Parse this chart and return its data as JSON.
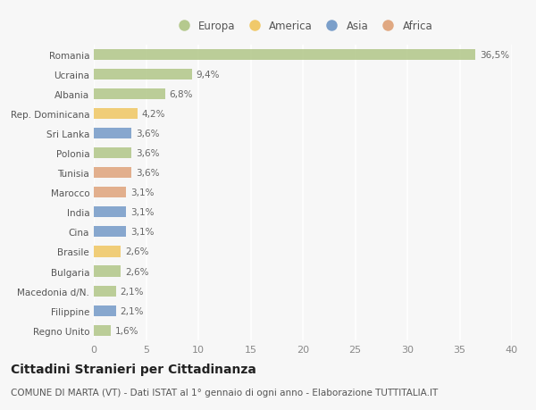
{
  "countries": [
    "Romania",
    "Ucraina",
    "Albania",
    "Rep. Dominicana",
    "Sri Lanka",
    "Polonia",
    "Tunisia",
    "Marocco",
    "India",
    "Cina",
    "Brasile",
    "Bulgaria",
    "Macedonia d/N.",
    "Filippine",
    "Regno Unito"
  ],
  "values": [
    36.5,
    9.4,
    6.8,
    4.2,
    3.6,
    3.6,
    3.6,
    3.1,
    3.1,
    3.1,
    2.6,
    2.6,
    2.1,
    2.1,
    1.6
  ],
  "labels": [
    "36,5%",
    "9,4%",
    "6,8%",
    "4,2%",
    "3,6%",
    "3,6%",
    "3,6%",
    "3,1%",
    "3,1%",
    "3,1%",
    "2,6%",
    "2,6%",
    "2,1%",
    "2,1%",
    "1,6%"
  ],
  "continents": [
    "Europa",
    "Europa",
    "Europa",
    "America",
    "Asia",
    "Europa",
    "Africa",
    "Africa",
    "Asia",
    "Asia",
    "America",
    "Europa",
    "Europa",
    "Asia",
    "Europa"
  ],
  "continent_colors": {
    "Europa": "#b5c98e",
    "America": "#f0c96a",
    "Asia": "#7b9fca",
    "Africa": "#e0a882"
  },
  "legend_order": [
    "Europa",
    "America",
    "Asia",
    "Africa"
  ],
  "xlim": [
    0,
    40
  ],
  "xticks": [
    0,
    5,
    10,
    15,
    20,
    25,
    30,
    35,
    40
  ],
  "title": "Cittadini Stranieri per Cittadinanza",
  "subtitle": "COMUNE DI MARTA (VT) - Dati ISTAT al 1° gennaio di ogni anno - Elaborazione TUTTITALIA.IT",
  "background_color": "#f7f7f7",
  "bar_height": 0.55,
  "label_fontsize": 7.5,
  "title_fontsize": 10,
  "subtitle_fontsize": 7.5,
  "ytick_fontsize": 7.5,
  "xtick_fontsize": 8,
  "legend_fontsize": 8.5
}
